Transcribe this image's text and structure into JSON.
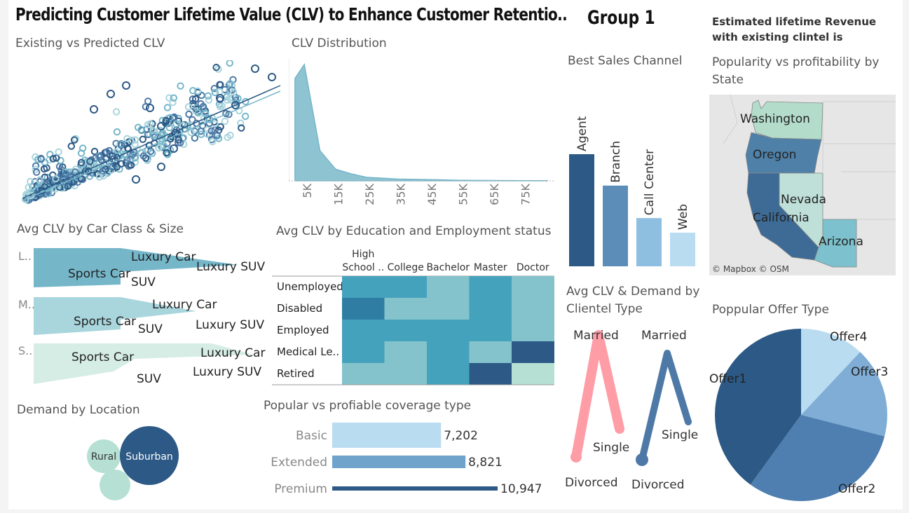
{
  "header": {
    "title": "Predicting Customer Lifetime Value (CLV) to Enhance Customer Retentio..",
    "group": "Group 1",
    "revenue_text": "Estimated lifetime Revenue with existing clintel is"
  },
  "colors": {
    "dark": "#2c5985",
    "mid": "#5b8db8",
    "light": "#8fbfe0",
    "pale": "#b9dcf0",
    "teal": "#75b6c9",
    "pink": "#ff9da7"
  },
  "scatter": {
    "title": "Existing vs Predicted CLV",
    "chart_data": {
      "type": "scatter",
      "series": [
        {
          "name": "",
          "x": [],
          "y": []
        }
      ]
    }
  },
  "distribution": {
    "title": "CLV Distribution",
    "chart_data": {
      "type": "area",
      "x": [
        2,
        5,
        10,
        15,
        20,
        25,
        35,
        45,
        55,
        65,
        75,
        83
      ],
      "y": [
        88,
        100,
        26,
        10,
        6,
        3,
        1.5,
        1,
        0.5,
        0.3,
        0.2,
        0.1
      ],
      "tick_labels": [
        "5K",
        "15K",
        "25K",
        "35K",
        "45K",
        "55K",
        "65K",
        "75K"
      ]
    }
  },
  "sales_channel": {
    "title": "Best Sales Channel",
    "chart_data": {
      "type": "bar",
      "categories": [
        "Agent",
        "Branch",
        "Call Center",
        "Web"
      ],
      "values": [
        100,
        72,
        43,
        30
      ]
    }
  },
  "map": {
    "title": "Popularity vs profitability by State",
    "states": [
      "Washington",
      "Oregon",
      "Nevada",
      "California",
      "Arizona"
    ],
    "attribution": "© Mapbox © OSM"
  },
  "car_class": {
    "title": "Avg CLV by Car Class & Size",
    "rows": [
      {
        "label": "L..",
        "items": [
          "Luxury Car",
          "Sports Car",
          "Luxury SUV",
          "SUV"
        ]
      },
      {
        "label": "M..",
        "items": [
          "Luxury Car",
          "Sports Car",
          "SUV",
          "Luxury SUV"
        ]
      },
      {
        "label": "S..",
        "items": [
          "Sports Car",
          "Luxury Car",
          "Luxury SUV",
          "SUV"
        ]
      }
    ]
  },
  "heatmap": {
    "title": "Avg CLV by Education and Employment status",
    "chart_data": {
      "type": "heatmap",
      "columns": [
        "High School ..",
        "College",
        "Bachelor",
        "Master",
        "Doctor"
      ],
      "rows": [
        "Unemployed",
        "Disabled",
        "Employed",
        "Medical Le..",
        "Retired"
      ],
      "levels": [
        [
          3,
          3,
          2,
          3,
          2
        ],
        [
          4,
          2,
          2,
          3,
          2
        ],
        [
          3,
          3,
          3,
          3,
          2
        ],
        [
          3,
          2,
          3,
          2,
          5
        ],
        [
          2,
          2,
          3,
          5,
          1
        ]
      ]
    }
  },
  "clientel": {
    "title": "Avg CLV & Demand by Clientel Type",
    "labels": [
      "Married",
      "Single",
      "Divorced",
      "Married",
      "Single",
      "Divorced"
    ]
  },
  "location": {
    "title": "Demand by Location",
    "bubbles": [
      "Rural",
      "Suburban",
      ""
    ]
  },
  "coverage": {
    "title": "Popular vs profiable coverage type",
    "chart_data": {
      "type": "bar",
      "categories": [
        "Basic",
        "Extended",
        "Premium"
      ],
      "values": [
        7202,
        8821,
        10947
      ],
      "labels": [
        "7,202",
        "8,821",
        "10,947"
      ]
    }
  },
  "offer": {
    "title": "Poppular Offer Type",
    "chart_data": {
      "type": "pie",
      "categories": [
        "Offer1",
        "Offer2",
        "Offer3",
        "Offer4"
      ],
      "values": [
        40,
        31,
        17,
        12
      ]
    }
  }
}
